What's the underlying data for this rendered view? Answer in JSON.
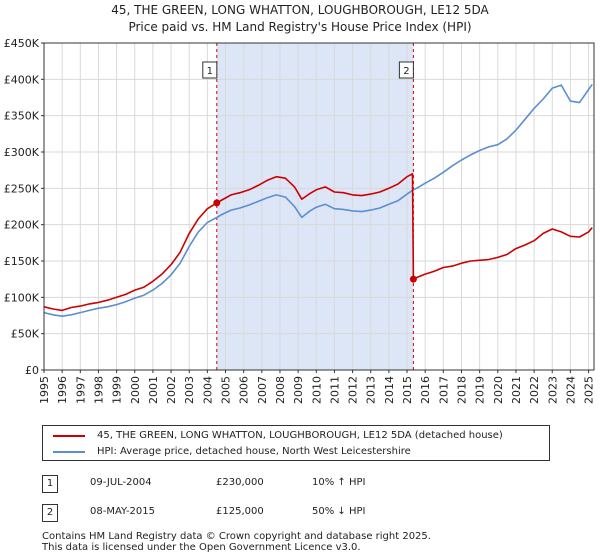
{
  "chart_data": {
    "type": "line",
    "title": "45, THE GREEN, LONG WHATTON, LOUGHBOROUGH, LE12 5DA",
    "subtitle": "Price paid vs. HM Land Registry's House Price Index (HPI)",
    "xlabel": "",
    "ylabel": "",
    "xlim": [
      1995,
      2025.3
    ],
    "ylim": [
      0,
      450000
    ],
    "x_ticks": [
      "1995",
      "1996",
      "1997",
      "1998",
      "1999",
      "2000",
      "2001",
      "2002",
      "2003",
      "2004",
      "2005",
      "2006",
      "2007",
      "2008",
      "2009",
      "2010",
      "2011",
      "2012",
      "2013",
      "2014",
      "2015",
      "2016",
      "2017",
      "2018",
      "2019",
      "2020",
      "2021",
      "2022",
      "2023",
      "2024",
      "2025"
    ],
    "y_ticks": [
      "£0",
      "£50K",
      "£100K",
      "£150K",
      "£200K",
      "£250K",
      "£300K",
      "£350K",
      "£400K",
      "£450K"
    ],
    "y_tick_values": [
      0,
      50000,
      100000,
      150000,
      200000,
      250000,
      300000,
      350000,
      400000,
      450000
    ],
    "grid": true,
    "shaded_region": {
      "from": 2004.52,
      "to": 2015.35,
      "color": "#dce6f7"
    },
    "series": [
      {
        "name": "45, THE GREEN, LONG WHATTON, LOUGHBOROUGH, LE12 5DA (detached house)",
        "color": "#cc0000",
        "x": [
          1995,
          1995.5,
          1996,
          1996.5,
          1997,
          1997.5,
          1998,
          1998.5,
          1999,
          1999.5,
          2000,
          2000.5,
          2001,
          2001.5,
          2002,
          2002.5,
          2003,
          2003.5,
          2004,
          2004.52,
          2004.8,
          2005.3,
          2005.8,
          2006.3,
          2006.8,
          2007.3,
          2007.8,
          2008.3,
          2008.8,
          2009.2,
          2009.6,
          2010,
          2010.5,
          2011,
          2011.5,
          2012,
          2012.5,
          2013,
          2013.5,
          2014,
          2014.5,
          2015,
          2015.3,
          2015.35,
          2015.6,
          2016,
          2016.5,
          2017,
          2017.5,
          2018,
          2018.5,
          2019,
          2019.5,
          2020,
          2020.5,
          2021,
          2021.5,
          2022,
          2022.5,
          2023,
          2023.5,
          2024,
          2024.5,
          2025,
          2025.2
        ],
        "values": [
          87000,
          84000,
          82000,
          86000,
          88000,
          91000,
          93000,
          96000,
          100000,
          104000,
          110000,
          114000,
          122000,
          132000,
          145000,
          162000,
          188000,
          208000,
          222000,
          230000,
          234000,
          241000,
          244000,
          248000,
          254000,
          261000,
          266000,
          264000,
          252000,
          235000,
          242000,
          248000,
          252000,
          245000,
          244000,
          241000,
          240000,
          242000,
          245000,
          250000,
          256000,
          266000,
          270000,
          125000,
          128000,
          132000,
          136000,
          141000,
          143000,
          147000,
          150000,
          151000,
          152000,
          155000,
          159000,
          167000,
          172000,
          178000,
          188000,
          194000,
          190000,
          184000,
          183000,
          190000,
          196000
        ]
      },
      {
        "name": "HPI: Average price, detached house, North West Leicestershire",
        "color": "#5b8fd0",
        "x": [
          1995,
          1995.5,
          1996,
          1996.5,
          1997,
          1997.5,
          1998,
          1998.5,
          1999,
          1999.5,
          2000,
          2000.5,
          2001,
          2001.5,
          2002,
          2002.5,
          2003,
          2003.5,
          2004,
          2004.52,
          2004.8,
          2005.3,
          2005.8,
          2006.3,
          2006.8,
          2007.3,
          2007.8,
          2008.3,
          2008.8,
          2009.2,
          2009.6,
          2010,
          2010.5,
          2011,
          2011.5,
          2012,
          2012.5,
          2013,
          2013.5,
          2014,
          2014.5,
          2015,
          2015.35,
          2015.6,
          2016,
          2016.5,
          2017,
          2017.5,
          2018,
          2018.5,
          2019,
          2019.5,
          2020,
          2020.5,
          2021,
          2021.5,
          2022,
          2022.5,
          2023,
          2023.5,
          2024,
          2024.5,
          2025,
          2025.2
        ],
        "values": [
          79000,
          76000,
          74000,
          76000,
          79000,
          82000,
          85000,
          87000,
          90000,
          94000,
          99000,
          103000,
          110000,
          119000,
          131000,
          147000,
          170000,
          190000,
          203000,
          210000,
          214000,
          220000,
          223000,
          227000,
          232000,
          237000,
          241000,
          238000,
          225000,
          210000,
          218000,
          224000,
          228000,
          222000,
          221000,
          219000,
          218000,
          220000,
          223000,
          228000,
          233000,
          242000,
          248000,
          251000,
          257000,
          264000,
          272000,
          281000,
          289000,
          296000,
          302000,
          307000,
          310000,
          318000,
          330000,
          345000,
          360000,
          373000,
          388000,
          392000,
          370000,
          368000,
          386000,
          393000
        ]
      }
    ],
    "markers": [
      {
        "label": "1",
        "x": 2004.52,
        "value": 230000
      },
      {
        "label": "2",
        "x": 2015.35,
        "value": 125000
      }
    ]
  },
  "legend": {
    "property_label": "45, THE GREEN, LONG WHATTON, LOUGHBOROUGH, LE12 5DA (detached house)",
    "hpi_label": "HPI: Average price, detached house, North West Leicestershire"
  },
  "transactions": [
    {
      "num": "1",
      "date": "09-JUL-2004",
      "price": "£230,000",
      "hpi": "10% ↑ HPI"
    },
    {
      "num": "2",
      "date": "08-MAY-2015",
      "price": "£125,000",
      "hpi": "50% ↓ HPI"
    }
  ],
  "footer": {
    "line1": "Contains HM Land Registry data © Crown copyright and database right 2025.",
    "line2": "This data is licensed under the Open Government Licence v3.0."
  }
}
